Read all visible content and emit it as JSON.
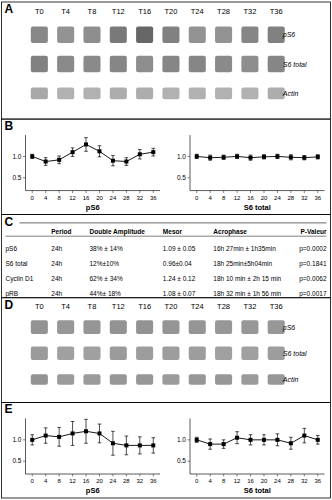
{
  "chart_data": [
    {
      "type": "blot",
      "title": "A",
      "categories": [
        "T0",
        "T4",
        "T8",
        "T12",
        "T16",
        "T20",
        "T24",
        "T28",
        "T32",
        "T36"
      ],
      "series": [
        {
          "name": "pS6",
          "values": [
            0.55,
            0.5,
            0.52,
            0.62,
            0.7,
            0.58,
            0.5,
            0.5,
            0.56,
            0.58
          ]
        },
        {
          "name": "S6 total",
          "values": [
            0.58,
            0.54,
            0.54,
            0.56,
            0.52,
            0.56,
            0.56,
            0.54,
            0.52,
            0.56
          ]
        },
        {
          "name": "Actin",
          "values": [
            0.4,
            0.36,
            0.36,
            0.38,
            0.38,
            0.36,
            0.36,
            0.36,
            0.36,
            0.38
          ]
        }
      ]
    },
    {
      "type": "line",
      "title": "B",
      "x_label": "pS6",
      "x": [
        0,
        4,
        8,
        12,
        16,
        20,
        24,
        28,
        32,
        36
      ],
      "xlim": [
        -2,
        38
      ],
      "xticks": [
        0,
        4,
        8,
        12,
        16,
        20,
        24,
        28,
        32,
        36
      ],
      "ylim": [
        0.2,
        1.5
      ],
      "yticks": [
        0.5,
        {
          "value": 1,
          "label": "1.0"
        }
      ],
      "series": [
        {
          "color": "black",
          "marker": "square",
          "line_style": "solid",
          "values": [
            1.0,
            0.88,
            0.92,
            1.1,
            1.28,
            1.12,
            0.9,
            0.88,
            1.05,
            1.1
          ],
          "errors": [
            0.05,
            0.09,
            0.09,
            0.1,
            0.16,
            0.13,
            0.12,
            0.09,
            0.11,
            0.09
          ]
        }
      ]
    },
    {
      "type": "line",
      "x_label": "S6 total",
      "x": [
        0,
        4,
        8,
        12,
        16,
        20,
        24,
        28,
        32,
        36
      ],
      "xlim": [
        -2,
        38
      ],
      "xticks": [
        0,
        4,
        8,
        12,
        16,
        20,
        24,
        28,
        32,
        36
      ],
      "ylim": [
        0.2,
        1.5
      ],
      "yticks": [
        0.5,
        {
          "value": 1,
          "label": "1.0"
        }
      ],
      "series": [
        {
          "color": "black",
          "marker": "square",
          "line_style": "solid",
          "values": [
            1.0,
            0.97,
            0.98,
            1.0,
            0.97,
            0.99,
            1.0,
            0.98,
            0.97,
            0.99
          ],
          "errors": [
            0.05,
            0.06,
            0.05,
            0.05,
            0.06,
            0.05,
            0.05,
            0.06,
            0.05,
            0.05
          ]
        }
      ]
    },
    {
      "type": "table",
      "title": "C",
      "columns": [
        "Period",
        "Double Amplitude",
        "Mesor",
        "Acrophase",
        "P-Valeur"
      ],
      "rows": [
        [
          "pS6",
          "24h",
          "38% ± 14%",
          "1.09 ± 0.05",
          "16h 27min ± 1h35min",
          "p=0.0002"
        ],
        [
          "S6 total",
          "24h",
          "12%±10%",
          "0.96±0.04",
          "18h 25min±5h04min",
          "p=0.1841"
        ],
        [
          "Cyclin D1",
          "24h",
          "62% ± 34%",
          "1.24 ± 0.12",
          "18h 10 min ± 2h 15 min",
          "p=0.0062"
        ],
        [
          "pRB",
          "24h",
          "44%± 18%",
          "1.08 ± 0.07",
          "18h 32 min ± 1h 56 min",
          "p=0.0017"
        ]
      ]
    },
    {
      "type": "blot",
      "title": "D",
      "categories": [
        "T0",
        "T4",
        "T8",
        "T12",
        "T16",
        "T20",
        "T24",
        "T28",
        "T32",
        "T36"
      ],
      "series": [
        {
          "name": "pS6",
          "values": [
            0.5,
            0.48,
            0.49,
            0.5,
            0.5,
            0.49,
            0.49,
            0.48,
            0.48,
            0.48
          ]
        },
        {
          "name": "S6 total",
          "values": [
            0.46,
            0.44,
            0.44,
            0.46,
            0.45,
            0.45,
            0.45,
            0.44,
            0.44,
            0.45
          ]
        },
        {
          "name": "Actin",
          "values": [
            0.5,
            0.46,
            0.46,
            0.48,
            0.48,
            0.46,
            0.48,
            0.48,
            0.46,
            0.48
          ]
        }
      ]
    },
    {
      "type": "line",
      "title": "E",
      "x_label": "pS6",
      "x": [
        0,
        4,
        8,
        12,
        16,
        20,
        24,
        28,
        32,
        36
      ],
      "xlim": [
        -2,
        38
      ],
      "xticks": [
        0,
        4,
        8,
        12,
        16,
        20,
        24,
        28,
        32,
        36
      ],
      "ylim": [
        0.2,
        1.5
      ],
      "yticks": [
        0.5,
        {
          "value": 1,
          "label": "1.0"
        }
      ],
      "series": [
        {
          "color": "black",
          "marker": "square",
          "line_style": "solid",
          "values": [
            1.0,
            1.1,
            1.07,
            1.15,
            1.2,
            1.15,
            0.92,
            0.87,
            0.87,
            0.87
          ],
          "errors": [
            0.12,
            0.18,
            0.22,
            0.28,
            0.28,
            0.22,
            0.28,
            0.22,
            0.2,
            0.18
          ]
        }
      ]
    },
    {
      "type": "line",
      "x_label": "S6 total",
      "x": [
        0,
        4,
        8,
        12,
        16,
        20,
        24,
        28,
        32,
        36
      ],
      "xlim": [
        -2,
        38
      ],
      "xticks": [
        0,
        4,
        8,
        12,
        16,
        20,
        24,
        28,
        32,
        36
      ],
      "ylim": [
        0.2,
        1.5
      ],
      "yticks": [
        0.5,
        {
          "value": 1,
          "label": "1.0"
        }
      ],
      "series": [
        {
          "color": "black",
          "marker": "square",
          "line_style": "solid",
          "values": [
            1.0,
            0.9,
            0.9,
            1.05,
            1.0,
            1.0,
            1.0,
            0.92,
            1.1,
            1.0
          ],
          "errors": [
            0.06,
            0.12,
            0.1,
            0.14,
            0.12,
            0.12,
            0.14,
            0.14,
            0.17,
            0.1
          ]
        }
      ]
    }
  ]
}
